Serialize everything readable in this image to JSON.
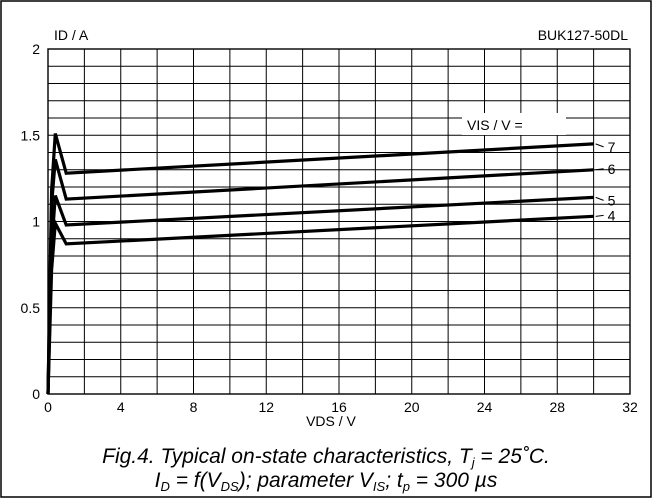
{
  "chart_data": {
    "type": "line",
    "part_number": "BUK127-50DL",
    "ylabel": "ID  / A",
    "xlabel": "VDS / V",
    "legend_title": "VIS / V =",
    "xlim": [
      0,
      32
    ],
    "ylim": [
      0,
      2
    ],
    "x_ticks": [
      "0",
      "4",
      "8",
      "12",
      "16",
      "20",
      "24",
      "28",
      "32"
    ],
    "y_ticks": [
      "0",
      "0.5",
      "1",
      "1.5",
      "2"
    ],
    "grid": true,
    "series": [
      {
        "name": "7",
        "points": [
          [
            0,
            0
          ],
          [
            0.2,
            1.18
          ],
          [
            0.4,
            1.51
          ],
          [
            1,
            1.28
          ],
          [
            30,
            1.45
          ]
        ]
      },
      {
        "name": "6",
        "points": [
          [
            0,
            0
          ],
          [
            0.2,
            1.1
          ],
          [
            0.4,
            1.36
          ],
          [
            1,
            1.13
          ],
          [
            30,
            1.3
          ]
        ]
      },
      {
        "name": "5",
        "points": [
          [
            0,
            0
          ],
          [
            0.2,
            0.85
          ],
          [
            0.4,
            1.15
          ],
          [
            1,
            0.98
          ],
          [
            30,
            1.14
          ]
        ]
      },
      {
        "name": "4",
        "points": [
          [
            0,
            0
          ],
          [
            0.2,
            0.72
          ],
          [
            0.4,
            0.99
          ],
          [
            1,
            0.87
          ],
          [
            30,
            1.03
          ]
        ]
      }
    ]
  },
  "caption": {
    "line1_prefix": "Fig.4.   Typical on-state characteristics, T",
    "line1_sub": "j",
    "line1_suffix": " = 25˚C.",
    "line2_I": "I",
    "line2_D": "D",
    "line2_mid": " = f(V",
    "line2_DS": "DS",
    "line2_param": "); parameter V",
    "line2_IS": "IS",
    "line2_t": "; t",
    "line2_p": "p",
    "line2_end": " = 300 µs"
  }
}
